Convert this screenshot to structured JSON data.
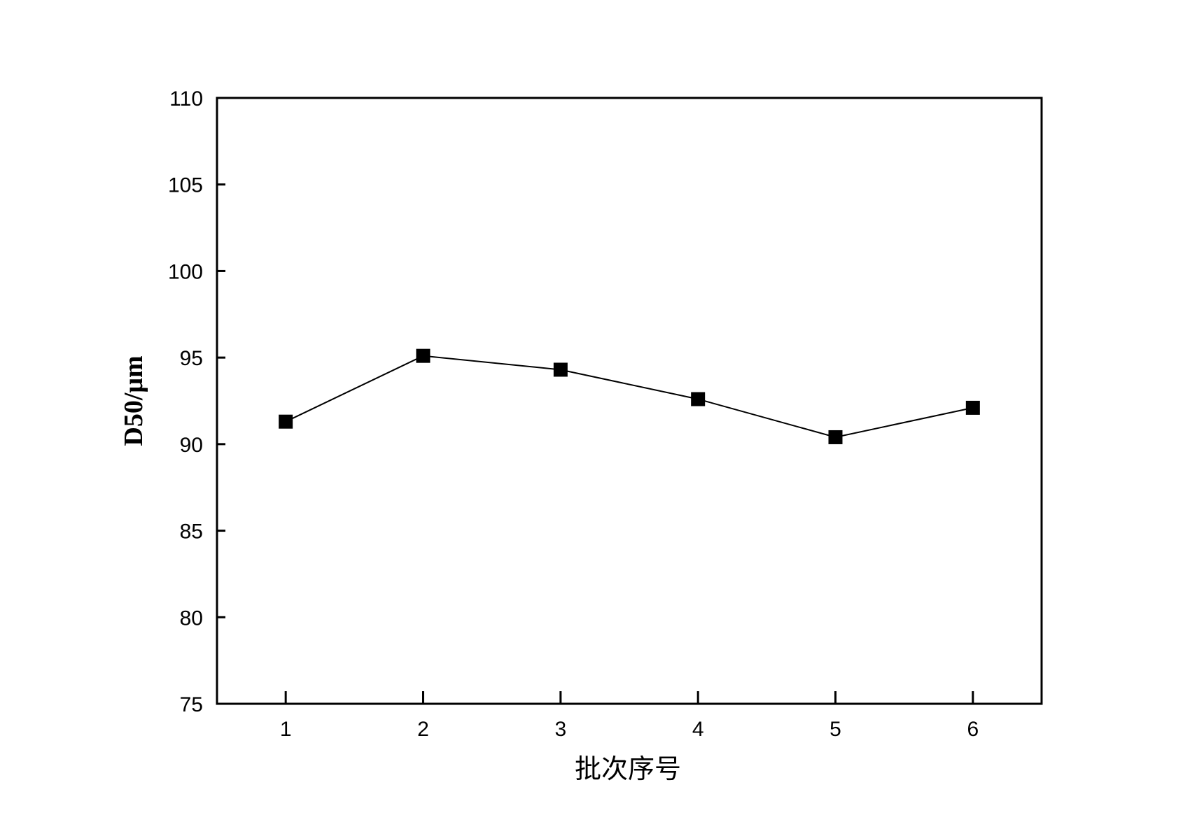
{
  "chart_data": {
    "type": "line",
    "x_label": "批次序号",
    "y_label": "D50/μm",
    "x": [
      1,
      2,
      3,
      4,
      5,
      6
    ],
    "values": [
      91.3,
      95.1,
      94.3,
      92.6,
      90.4,
      92.1
    ],
    "color": "#000000",
    "marker": "square",
    "xlim": [
      0.5,
      6.5
    ],
    "xticks": [
      1,
      2,
      3,
      4,
      5,
      6
    ],
    "ylim": [
      75,
      110
    ],
    "yticks": [
      75,
      80,
      85,
      90,
      95,
      100,
      105,
      110
    ],
    "grid": false
  }
}
